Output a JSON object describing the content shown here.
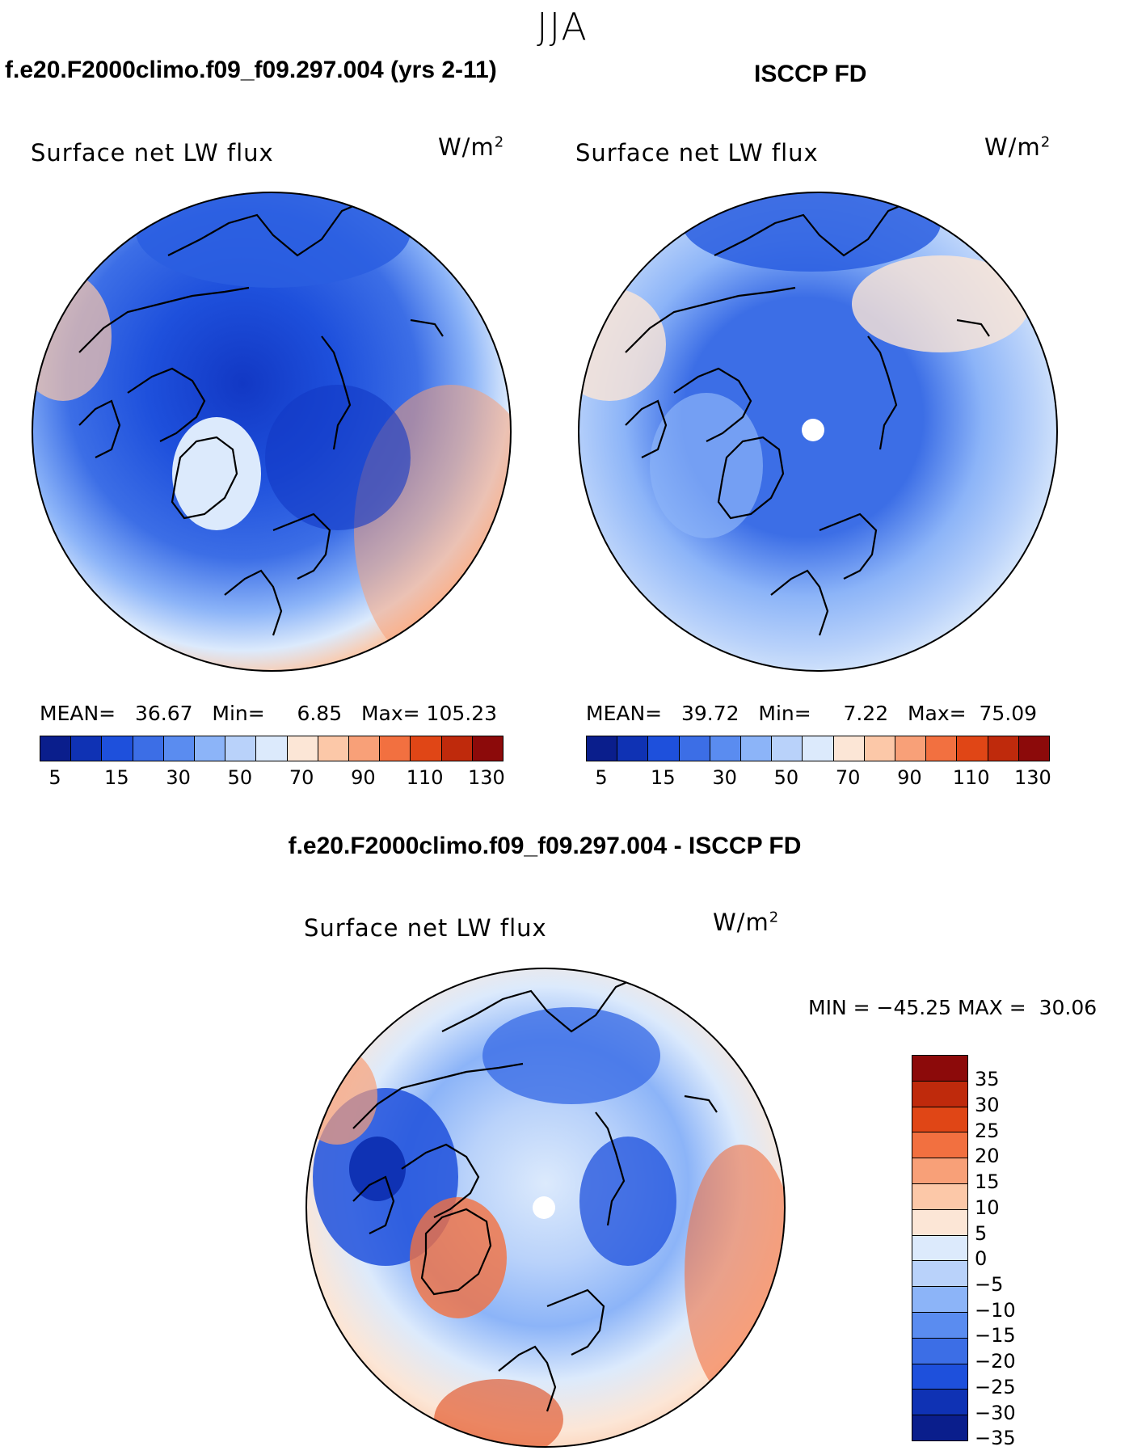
{
  "season": "JJA",
  "panels": {
    "model": {
      "case_title": "f.e20.F2000climo.f09_f09.297.004 (yrs 2-11)",
      "plot_title": "Surface net LW flux",
      "units_base": "W/m",
      "units_exp": "2",
      "stats": {
        "mean_label": "MEAN=",
        "mean": "36.67",
        "min_label": "Min=",
        "min": "6.85",
        "max_label": "Max=",
        "max": "105.23"
      }
    },
    "obs": {
      "case_title": "ISCCP FD",
      "plot_title": "Surface net LW flux",
      "units_base": "W/m",
      "units_exp": "2",
      "stats": {
        "mean_label": "MEAN=",
        "mean": "39.72",
        "min_label": "Min=",
        "min": "7.22",
        "max_label": "Max=",
        "max": "75.09"
      }
    },
    "diff": {
      "case_title": "f.e20.F2000climo.f09_f09.297.004 - ISCCP FD",
      "plot_title": "Surface net LW flux",
      "units_base": "W/m",
      "units_exp": "2",
      "stats": {
        "min_label": "MIN =",
        "min": "−45.25",
        "max_label": "MAX =",
        "max": "30.06"
      }
    }
  },
  "abs_colorbar": {
    "colors": [
      "#0a1e8c",
      "#0f32b4",
      "#1e50dc",
      "#3c6ee6",
      "#5a8cf0",
      "#8cb4f8",
      "#b9d2fa",
      "#dceafc",
      "#fce6d6",
      "#fcc8a8",
      "#f8a078",
      "#f27040",
      "#e04616",
      "#bf2a0c",
      "#8c0a0a"
    ],
    "tick_labels": [
      "5",
      "15",
      "30",
      "50",
      "70",
      "90",
      "110",
      "130"
    ]
  },
  "diff_colorbar": {
    "colors": [
      "#8c0a0a",
      "#bf2a0c",
      "#e04616",
      "#f27040",
      "#f8a078",
      "#fcc8a8",
      "#fce6d6",
      "#dceafc",
      "#b9d2fa",
      "#8cb4f8",
      "#5a8cf0",
      "#3c6ee6",
      "#1e50dc",
      "#0f32b4",
      "#0a1e8c"
    ],
    "tick_labels": [
      "35",
      "30",
      "25",
      "20",
      "15",
      "10",
      "5",
      "0",
      "−5",
      "−10",
      "−15",
      "−20",
      "−25",
      "−30",
      "−35"
    ]
  }
}
